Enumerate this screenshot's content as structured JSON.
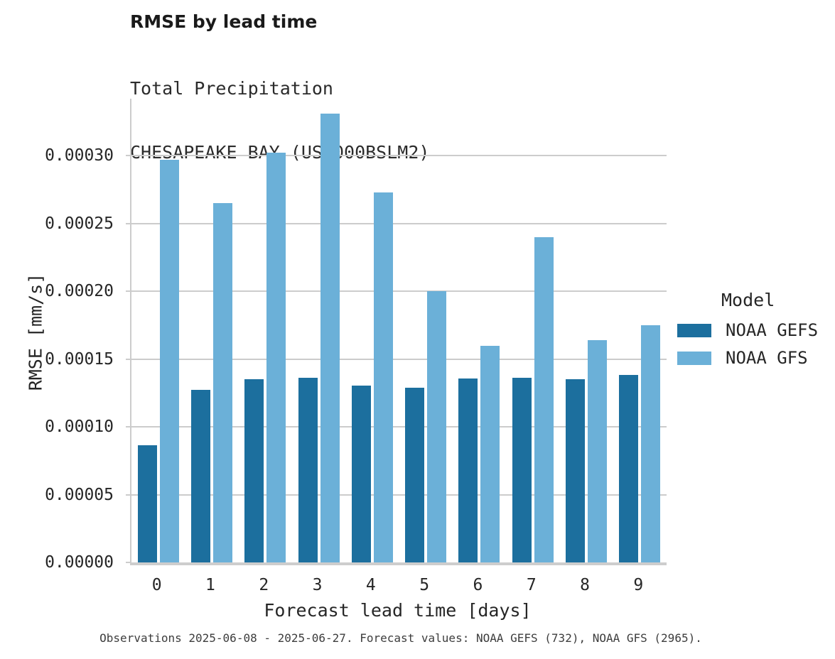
{
  "title": "RMSE by lead time",
  "subtitle_line1": "Total Precipitation",
  "subtitle_line2": "CHESAPEAKE BAY (USL000BSLM2)",
  "caption": "Observations 2025-06-08 - 2025-06-27. Forecast values: NOAA GEFS (732), NOAA GFS (2965).",
  "legend": {
    "title": "Model",
    "items": [
      {
        "label": "NOAA GEFS",
        "color": "#1c6f9e"
      },
      {
        "label": "NOAA GFS",
        "color": "#6bb0d8"
      }
    ]
  },
  "colors": {
    "gefs_bar": "#1c6f9e",
    "gfs_bar": "#6bb0d8",
    "gridline": "#cccccc",
    "text": "#262626",
    "caption_text": "#3d3d3d"
  },
  "chart_data": {
    "type": "bar",
    "title": "RMSE by lead time",
    "subtitle": [
      "Total Precipitation",
      "CHESAPEAKE BAY (USL000BSLM2)"
    ],
    "xlabel": "Forecast lead time [days]",
    "ylabel": "RMSE [mm/s]",
    "categories": [
      "0",
      "1",
      "2",
      "3",
      "4",
      "5",
      "6",
      "7",
      "8",
      "9"
    ],
    "series": [
      {
        "name": "NOAA GEFS",
        "color": "#1c6f9e",
        "values": [
          8.66e-05,
          0.0001273,
          0.0001352,
          0.000136,
          0.0001303,
          0.0001287,
          0.0001356,
          0.0001363,
          0.0001349,
          0.0001384
        ]
      },
      {
        "name": "NOAA GFS",
        "color": "#6bb0d8",
        "values": [
          0.000297,
          0.000265,
          0.000302,
          0.000331,
          0.000273,
          0.0002,
          0.00016,
          0.00024,
          0.000164,
          0.000175
        ]
      }
    ],
    "ylim": [
      0,
      0.000342
    ],
    "yticks": [
      0.0,
      5e-05,
      0.0001,
      0.00015,
      0.0002,
      0.00025,
      0.0003
    ],
    "ytick_labels": [
      "0.00000",
      "0.00005",
      "0.00010",
      "0.00015",
      "0.00020",
      "0.00025",
      "0.00030"
    ],
    "grid": true,
    "legend_title": "Model",
    "legend_position": "right"
  }
}
